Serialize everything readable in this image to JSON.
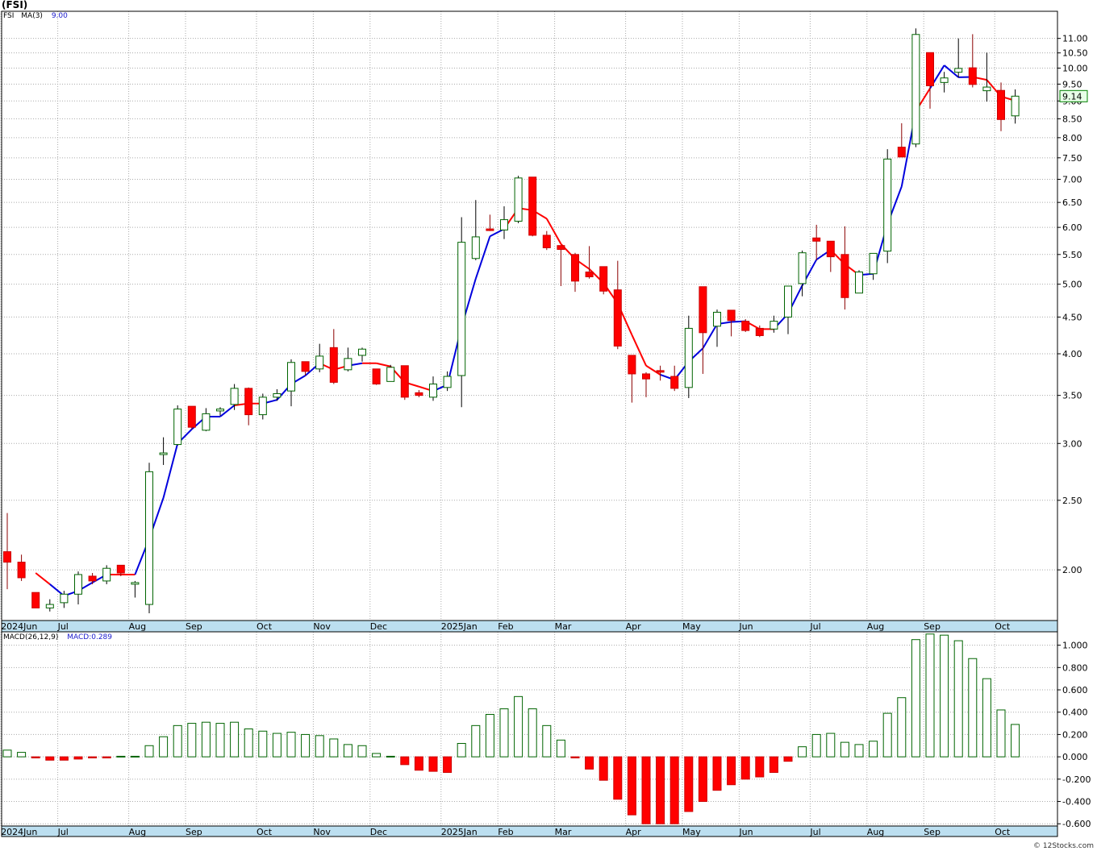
{
  "title": "(FSI)",
  "credit": "© 12Stocks.com",
  "colors": {
    "up": "#006400",
    "down": "#ff0000",
    "ma_up": "#0000dd",
    "ma_down": "#ff0000",
    "axis_band": "#bcdff0",
    "grid": "#aaaaaa"
  },
  "chart_data": [
    {
      "type": "candlestick",
      "symbol": "FSI",
      "legend": {
        "symbol": "FSI",
        "ma_label": "MA(3)",
        "ma_value": "9.00"
      },
      "scale": "log",
      "ylim": [
        1.7,
        12.0
      ],
      "y_ticks": [
        "2.00",
        "2.50",
        "3.00",
        "3.50",
        "4.00",
        "4.50",
        "5.00",
        "5.50",
        "6.00",
        "6.50",
        "7.00",
        "7.50",
        "8.00",
        "8.50",
        "9.00",
        "9.50",
        "10.00",
        "10.50",
        "11.00"
      ],
      "last_price": "9.14",
      "month_labels": [
        {
          "label": "2024Jun",
          "week": 0
        },
        {
          "label": "Jul",
          "week": 4
        },
        {
          "label": "Aug",
          "week": 9
        },
        {
          "label": "Sep",
          "week": 13
        },
        {
          "label": "Oct",
          "week": 18
        },
        {
          "label": "Nov",
          "week": 22
        },
        {
          "label": "Dec",
          "week": 26
        },
        {
          "label": "2025Jan",
          "week": 31
        },
        {
          "label": "Feb",
          "week": 35
        },
        {
          "label": "Mar",
          "week": 39
        },
        {
          "label": "Apr",
          "week": 44
        },
        {
          "label": "May",
          "week": 48
        },
        {
          "label": "Jun",
          "week": 52
        },
        {
          "label": "Jul",
          "week": 57
        },
        {
          "label": "Aug",
          "week": 61
        },
        {
          "label": "Sep",
          "week": 65
        },
        {
          "label": "Oct",
          "week": 70
        }
      ],
      "weeks": 72,
      "candles": [
        {
          "o": 2.12,
          "h": 2.4,
          "l": 1.88,
          "c": 2.05
        },
        {
          "o": 2.05,
          "h": 2.1,
          "l": 1.93,
          "c": 1.95
        },
        {
          "o": 1.86,
          "h": 1.86,
          "l": 1.77,
          "c": 1.77
        },
        {
          "o": 1.77,
          "h": 1.82,
          "l": 1.75,
          "c": 1.79
        },
        {
          "o": 1.8,
          "h": 1.87,
          "l": 1.77,
          "c": 1.85
        },
        {
          "o": 1.85,
          "h": 1.99,
          "l": 1.79,
          "c": 1.97
        },
        {
          "o": 1.96,
          "h": 1.98,
          "l": 1.91,
          "c": 1.93
        },
        {
          "o": 1.93,
          "h": 2.03,
          "l": 1.91,
          "c": 2.01
        },
        {
          "o": 2.03,
          "h": 2.03,
          "l": 1.96,
          "c": 1.98
        },
        {
          "o": 1.92,
          "h": 1.93,
          "l": 1.83,
          "c": 1.92
        },
        {
          "o": 1.79,
          "h": 2.82,
          "l": 1.74,
          "c": 2.74
        },
        {
          "o": 2.9,
          "h": 3.06,
          "l": 2.8,
          "c": 2.91
        },
        {
          "o": 2.99,
          "h": 3.39,
          "l": 2.98,
          "c": 3.35
        },
        {
          "o": 3.38,
          "h": 3.38,
          "l": 3.14,
          "c": 3.16
        },
        {
          "o": 3.13,
          "h": 3.36,
          "l": 3.12,
          "c": 3.3
        },
        {
          "o": 3.33,
          "h": 3.37,
          "l": 3.28,
          "c": 3.35
        },
        {
          "o": 3.4,
          "h": 3.63,
          "l": 3.34,
          "c": 3.58
        },
        {
          "o": 3.58,
          "h": 3.59,
          "l": 3.18,
          "c": 3.29
        },
        {
          "o": 3.29,
          "h": 3.52,
          "l": 3.24,
          "c": 3.48
        },
        {
          "o": 3.48,
          "h": 3.57,
          "l": 3.44,
          "c": 3.52
        },
        {
          "o": 3.55,
          "h": 3.93,
          "l": 3.38,
          "c": 3.89
        },
        {
          "o": 3.9,
          "h": 3.9,
          "l": 3.73,
          "c": 3.78
        },
        {
          "o": 3.81,
          "h": 4.13,
          "l": 3.77,
          "c": 3.97
        },
        {
          "o": 4.08,
          "h": 4.33,
          "l": 3.63,
          "c": 3.65
        },
        {
          "o": 3.8,
          "h": 4.08,
          "l": 3.78,
          "c": 3.94
        },
        {
          "o": 3.98,
          "h": 4.08,
          "l": 3.9,
          "c": 4.06
        },
        {
          "o": 3.81,
          "h": 3.81,
          "l": 3.62,
          "c": 3.63
        },
        {
          "o": 3.66,
          "h": 3.86,
          "l": 3.66,
          "c": 3.83
        },
        {
          "o": 3.85,
          "h": 3.85,
          "l": 3.45,
          "c": 3.48
        },
        {
          "o": 3.53,
          "h": 3.56,
          "l": 3.48,
          "c": 3.5
        },
        {
          "o": 3.48,
          "h": 3.72,
          "l": 3.44,
          "c": 3.63
        },
        {
          "o": 3.59,
          "h": 3.78,
          "l": 3.55,
          "c": 3.72
        },
        {
          "o": 3.73,
          "h": 6.2,
          "l": 3.37,
          "c": 5.72
        },
        {
          "o": 5.43,
          "h": 6.55,
          "l": 5.4,
          "c": 5.82
        },
        {
          "o": 5.97,
          "h": 6.25,
          "l": 5.93,
          "c": 5.95
        },
        {
          "o": 5.95,
          "h": 6.42,
          "l": 5.78,
          "c": 6.15
        },
        {
          "o": 6.12,
          "h": 7.08,
          "l": 6.08,
          "c": 7.03
        },
        {
          "o": 7.05,
          "h": 7.05,
          "l": 5.83,
          "c": 5.85
        },
        {
          "o": 5.85,
          "h": 5.93,
          "l": 5.58,
          "c": 5.62
        },
        {
          "o": 5.66,
          "h": 5.66,
          "l": 4.97,
          "c": 5.59
        },
        {
          "o": 5.5,
          "h": 5.53,
          "l": 4.88,
          "c": 5.05
        },
        {
          "o": 5.2,
          "h": 5.65,
          "l": 5.09,
          "c": 5.12
        },
        {
          "o": 5.29,
          "h": 5.29,
          "l": 4.84,
          "c": 4.89
        },
        {
          "o": 4.91,
          "h": 5.39,
          "l": 4.06,
          "c": 4.1
        },
        {
          "o": 3.98,
          "h": 3.98,
          "l": 3.42,
          "c": 3.75
        },
        {
          "o": 3.75,
          "h": 3.77,
          "l": 3.48,
          "c": 3.69
        },
        {
          "o": 3.79,
          "h": 3.85,
          "l": 3.67,
          "c": 3.78
        },
        {
          "o": 3.72,
          "h": 3.85,
          "l": 3.55,
          "c": 3.58
        },
        {
          "o": 3.59,
          "h": 4.52,
          "l": 3.47,
          "c": 4.34
        },
        {
          "o": 4.96,
          "h": 4.96,
          "l": 3.75,
          "c": 4.28
        },
        {
          "o": 4.37,
          "h": 4.61,
          "l": 4.09,
          "c": 4.57
        },
        {
          "o": 4.6,
          "h": 4.6,
          "l": 4.23,
          "c": 4.45
        },
        {
          "o": 4.44,
          "h": 4.47,
          "l": 4.29,
          "c": 4.31
        },
        {
          "o": 4.34,
          "h": 4.38,
          "l": 4.22,
          "c": 4.24
        },
        {
          "o": 4.33,
          "h": 4.52,
          "l": 4.28,
          "c": 4.44
        },
        {
          "o": 4.5,
          "h": 4.96,
          "l": 4.26,
          "c": 4.97
        },
        {
          "o": 5.01,
          "h": 5.57,
          "l": 4.81,
          "c": 5.53
        },
        {
          "o": 5.8,
          "h": 6.05,
          "l": 5.4,
          "c": 5.74
        },
        {
          "o": 5.74,
          "h": 5.74,
          "l": 5.2,
          "c": 5.46
        },
        {
          "o": 5.5,
          "h": 6.02,
          "l": 4.61,
          "c": 4.79
        },
        {
          "o": 4.86,
          "h": 5.23,
          "l": 4.86,
          "c": 5.2
        },
        {
          "o": 5.17,
          "h": 5.46,
          "l": 5.07,
          "c": 5.52
        },
        {
          "o": 5.56,
          "h": 7.71,
          "l": 5.35,
          "c": 7.47
        },
        {
          "o": 7.76,
          "h": 8.38,
          "l": 7.6,
          "c": 7.52
        },
        {
          "o": 7.84,
          "h": 11.36,
          "l": 7.76,
          "c": 11.14
        },
        {
          "o": 10.51,
          "h": 10.51,
          "l": 8.78,
          "c": 9.45
        },
        {
          "o": 9.55,
          "h": 9.88,
          "l": 9.25,
          "c": 9.69
        },
        {
          "o": 9.87,
          "h": 11.0,
          "l": 9.7,
          "c": 9.99
        },
        {
          "o": 10.01,
          "h": 11.15,
          "l": 9.4,
          "c": 9.49
        },
        {
          "o": 9.3,
          "h": 10.51,
          "l": 8.98,
          "c": 9.41
        },
        {
          "o": 9.31,
          "h": 9.55,
          "l": 8.17,
          "c": 8.48
        },
        {
          "o": 8.58,
          "h": 9.34,
          "l": 8.37,
          "c": 9.14
        }
      ],
      "ma3": [
        null,
        null,
        1.98,
        1.91,
        1.84,
        1.87,
        1.92,
        1.97,
        1.97,
        1.97,
        2.21,
        2.52,
        3.0,
        3.14,
        3.27,
        3.27,
        3.39,
        3.41,
        3.41,
        3.45,
        3.63,
        3.73,
        3.88,
        3.8,
        3.85,
        3.88,
        3.88,
        3.84,
        3.65,
        3.6,
        3.55,
        3.62,
        4.36,
        5.09,
        5.83,
        5.97,
        6.38,
        6.34,
        6.17,
        5.69,
        5.42,
        5.25,
        5.02,
        4.7,
        4.25,
        3.85,
        3.74,
        3.68,
        3.9,
        4.07,
        4.4,
        4.43,
        4.44,
        4.33,
        4.33,
        4.55,
        4.98,
        5.41,
        5.58,
        5.33,
        5.15,
        5.17,
        6.06,
        6.84,
        8.71,
        9.37,
        10.09,
        9.71,
        9.72,
        9.63,
        9.13,
        9.01
      ],
      "ma_dir": [
        "dn",
        "dn",
        "dn",
        "dn",
        "up",
        "up",
        "up",
        "up",
        "dn",
        "dn",
        "up",
        "up",
        "up",
        "up",
        "up",
        "up",
        "up",
        "dn",
        "dn",
        "up",
        "up",
        "up",
        "up",
        "dn",
        "dn",
        "up",
        "dn",
        "dn",
        "dn",
        "dn",
        "dn",
        "up",
        "up",
        "up",
        "up",
        "up",
        "dn",
        "dn",
        "dn",
        "dn",
        "dn",
        "dn",
        "dn",
        "dn",
        "dn",
        "dn",
        "dn",
        "up",
        "up",
        "up",
        "up",
        "up",
        "up",
        "dn",
        "dn",
        "up",
        "up",
        "up",
        "up",
        "dn",
        "dn",
        "up",
        "up",
        "up",
        "up",
        "dn",
        "up",
        "up",
        "up",
        "dn",
        "dn",
        "dn"
      ]
    },
    {
      "type": "bar",
      "indicator": "MACD",
      "legend": {
        "label": "MACD(26,12,9)",
        "value": "MACD:0.289"
      },
      "ylim": [
        -0.62,
        1.12
      ],
      "y_ticks": [
        "1.000",
        "0.800",
        "0.600",
        "0.400",
        "0.200",
        "0.000",
        "-0.200",
        "-0.400",
        "-0.600"
      ],
      "values": [
        0.06,
        0.04,
        -0.01,
        -0.03,
        -0.03,
        -0.02,
        -0.01,
        -0.01,
        0.005,
        0.005,
        0.1,
        0.18,
        0.28,
        0.3,
        0.31,
        0.3,
        0.31,
        0.25,
        0.23,
        0.21,
        0.22,
        0.2,
        0.19,
        0.16,
        0.11,
        0.1,
        0.03,
        0.005,
        -0.07,
        -0.12,
        -0.13,
        -0.14,
        0.12,
        0.28,
        0.38,
        0.43,
        0.54,
        0.43,
        0.28,
        0.15,
        -0.01,
        -0.11,
        -0.21,
        -0.38,
        -0.52,
        -0.6,
        -0.6,
        -0.6,
        -0.49,
        -0.4,
        -0.3,
        -0.25,
        -0.2,
        -0.18,
        -0.14,
        -0.04,
        0.09,
        0.2,
        0.21,
        0.13,
        0.11,
        0.14,
        0.39,
        0.53,
        1.05,
        1.1,
        1.09,
        1.04,
        0.88,
        0.7,
        0.42,
        0.29
      ]
    }
  ]
}
